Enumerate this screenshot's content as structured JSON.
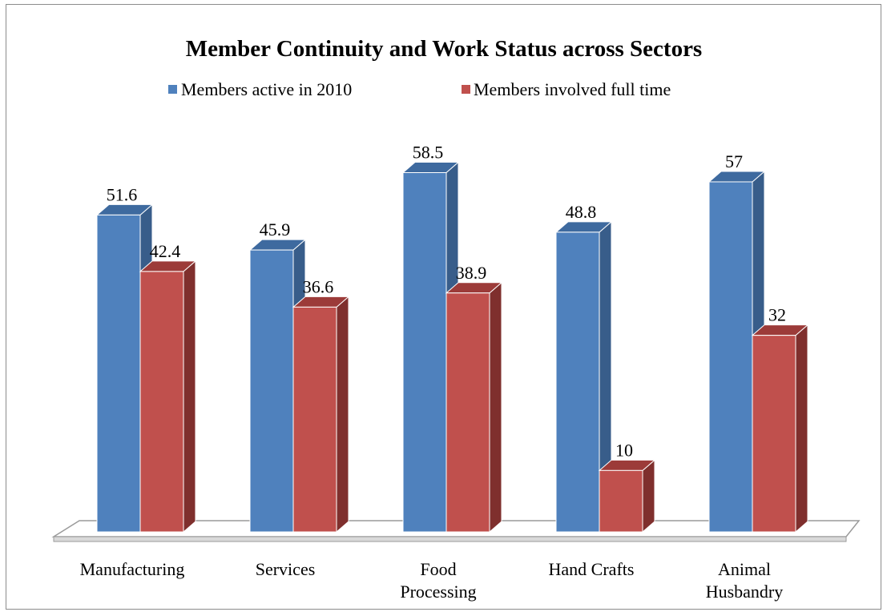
{
  "chart_data": {
    "type": "bar",
    "style": "3d-clustered-column",
    "title": "Member Continuity and Work  Status across Sectors",
    "categories": [
      [
        "Manufacturing"
      ],
      [
        "Services"
      ],
      [
        "Food",
        "Processing"
      ],
      [
        "Hand Crafts"
      ],
      [
        "Animal",
        "Husbandry"
      ]
    ],
    "series": [
      {
        "name": "Members active in 2010",
        "values": [
          51.6,
          45.9,
          58.5,
          48.8,
          57
        ],
        "color": "#4f81bd",
        "side_color": "#385d8a",
        "top_color": "#3e6a9f"
      },
      {
        "name": "Members involved full time",
        "values": [
          42.4,
          36.6,
          38.9,
          10,
          32
        ],
        "color": "#c0504d",
        "side_color": "#7f2f2d",
        "top_color": "#9c3b39"
      }
    ],
    "ylim": [
      0,
      60
    ],
    "grid": false,
    "legend_position": "top",
    "data_labels": true
  }
}
